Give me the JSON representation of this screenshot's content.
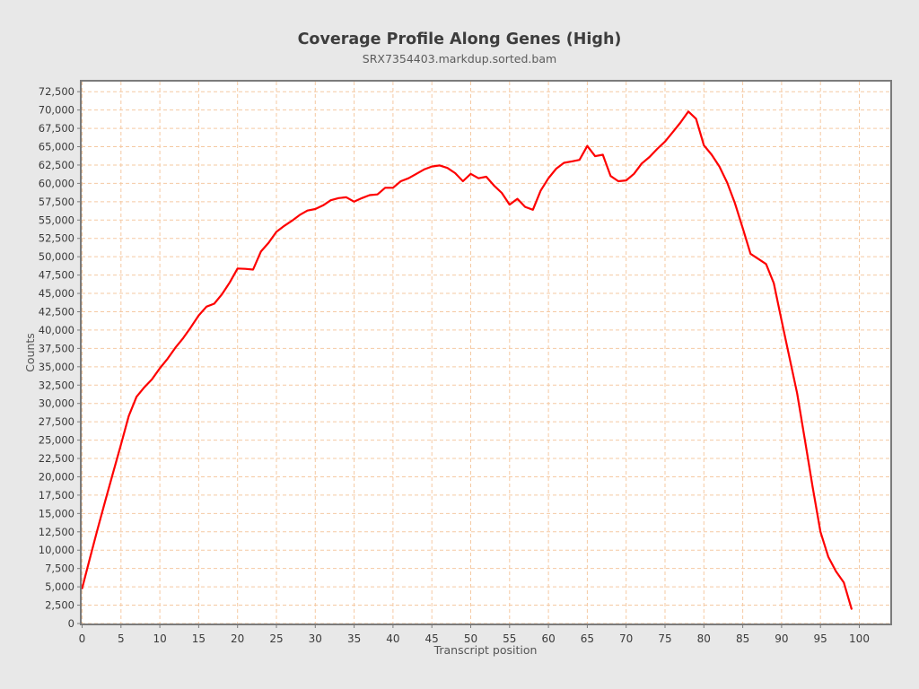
{
  "title": "Coverage Profile Along Genes (High)",
  "subtitle": "SRX7354403.markdup.sorted.bam",
  "chart_data": {
    "type": "line",
    "title": "Coverage Profile Along Genes (High)",
    "subtitle": "SRX7354403.markdup.sorted.bam",
    "xlabel": "Transcript position",
    "ylabel": "Counts",
    "xlim": [
      0,
      104
    ],
    "ylim": [
      0,
      74000
    ],
    "grid": true,
    "grid_style": "dashed",
    "legend_position": "none",
    "x_ticks": [
      0,
      5,
      10,
      15,
      20,
      25,
      30,
      35,
      40,
      45,
      50,
      55,
      60,
      65,
      70,
      75,
      80,
      85,
      90,
      95,
      100
    ],
    "y_ticks": [
      0,
      2500,
      5000,
      7500,
      10000,
      12500,
      15000,
      17500,
      20000,
      22500,
      25000,
      27500,
      30000,
      32500,
      35000,
      37500,
      40000,
      42500,
      45000,
      47500,
      50000,
      52500,
      55000,
      57500,
      60000,
      62500,
      65000,
      67500,
      70000,
      72500
    ],
    "series": [
      {
        "name": "SRX7354403.markdup.sorted.bam",
        "color": "#fe0000",
        "x": [
          0,
          1,
          2,
          3,
          4,
          5,
          6,
          7,
          8,
          9,
          10,
          11,
          12,
          13,
          14,
          15,
          16,
          17,
          18,
          19,
          20,
          21,
          22,
          23,
          24,
          25,
          26,
          27,
          28,
          29,
          30,
          31,
          32,
          33,
          34,
          35,
          36,
          37,
          38,
          39,
          40,
          41,
          42,
          43,
          44,
          45,
          46,
          47,
          48,
          49,
          50,
          51,
          52,
          53,
          54,
          55,
          56,
          57,
          58,
          59,
          60,
          61,
          62,
          63,
          64,
          65,
          66,
          67,
          68,
          69,
          70,
          71,
          72,
          73,
          74,
          75,
          76,
          77,
          78,
          79,
          80,
          81,
          82,
          83,
          84,
          85,
          86,
          87,
          88,
          89,
          90,
          91,
          92,
          93,
          94,
          95,
          96,
          97,
          98,
          99
        ],
        "values": [
          4800,
          8900,
          12900,
          16800,
          20600,
          24400,
          28300,
          30900,
          32200,
          33300,
          34800,
          36100,
          37600,
          38900,
          40400,
          42000,
          43200,
          43600,
          44900,
          46500,
          48400,
          48350,
          48250,
          50700,
          51900,
          53400,
          54200,
          54900,
          55700,
          56300,
          56500,
          57000,
          57700,
          58000,
          58100,
          57500,
          58000,
          58400,
          58500,
          59400,
          59400,
          60300,
          60700,
          61300,
          61900,
          62300,
          62450,
          62100,
          61400,
          60300,
          61300,
          60700,
          60900,
          59700,
          58700,
          57100,
          57900,
          56800,
          56400,
          59000,
          60700,
          62000,
          62800,
          63000,
          63200,
          65100,
          63700,
          63900,
          61000,
          60300,
          60400,
          61300,
          62700,
          63600,
          64700,
          65700,
          67000,
          68300,
          69800,
          68800,
          65200,
          63900,
          62300,
          60100,
          57300,
          53900,
          50400,
          49700,
          49000,
          46400,
          41300,
          36300,
          31400,
          25000,
          18600,
          12500,
          9100,
          7100,
          5600,
          2000
        ]
      }
    ]
  },
  "colors": {
    "page_background": "#e8e8e8",
    "plot_background": "#ffffff",
    "plot_border": "#7b7b7b",
    "gridline": "#f5c9a2",
    "series_line": "#fe0000",
    "title_text": "#3d3d3d",
    "subtitle_text": "#5c5c5c",
    "axis_title_text": "#555555",
    "tick_label_text": "#3a3a3a",
    "tick_mark": "#7b7b7b"
  }
}
